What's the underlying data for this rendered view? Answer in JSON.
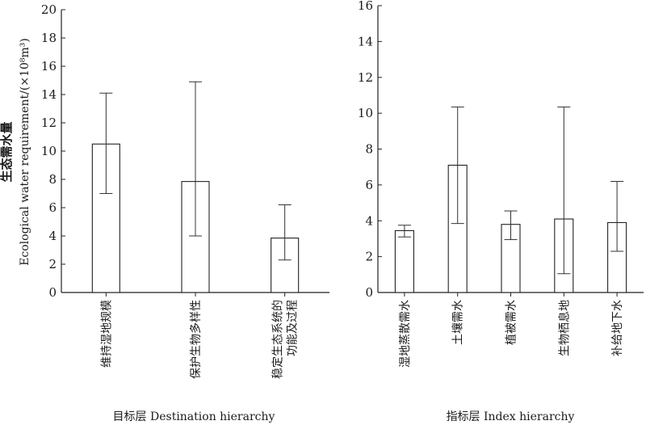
{
  "ylabel": {
    "cn": "生态需水量",
    "en": "Ecological water requirement/(×10⁸m³)"
  },
  "chart_data": [
    {
      "type": "bar",
      "xlabel": "目标层  Destination hierarchy",
      "ylim": [
        0,
        20
      ],
      "yticks": [
        0,
        2,
        4,
        6,
        8,
        10,
        12,
        14,
        16,
        18,
        20
      ],
      "categories": [
        [
          "维持湿地规模"
        ],
        [
          "保护生物多样性"
        ],
        [
          "稳定生态系统的",
          "功能及过程"
        ]
      ],
      "values": [
        10.5,
        7.85,
        3.85
      ],
      "error_low": [
        7.0,
        4.0,
        2.3
      ],
      "error_high": [
        14.1,
        14.9,
        6.2
      ]
    },
    {
      "type": "bar",
      "xlabel": "指标层  Index hierarchy",
      "ylim": [
        0,
        16
      ],
      "yticks": [
        0,
        2,
        4,
        6,
        8,
        10,
        12,
        14,
        16
      ],
      "categories": [
        [
          "湿地蒸散需水"
        ],
        [
          "土壤需水"
        ],
        [
          "植被需水"
        ],
        [
          "生物栖息地"
        ],
        [
          "补给地下水"
        ]
      ],
      "values": [
        3.45,
        7.1,
        3.8,
        4.1,
        3.9
      ],
      "error_low": [
        3.1,
        3.85,
        2.95,
        1.05,
        2.3
      ],
      "error_high": [
        3.75,
        10.35,
        4.55,
        10.35,
        6.2
      ]
    }
  ]
}
